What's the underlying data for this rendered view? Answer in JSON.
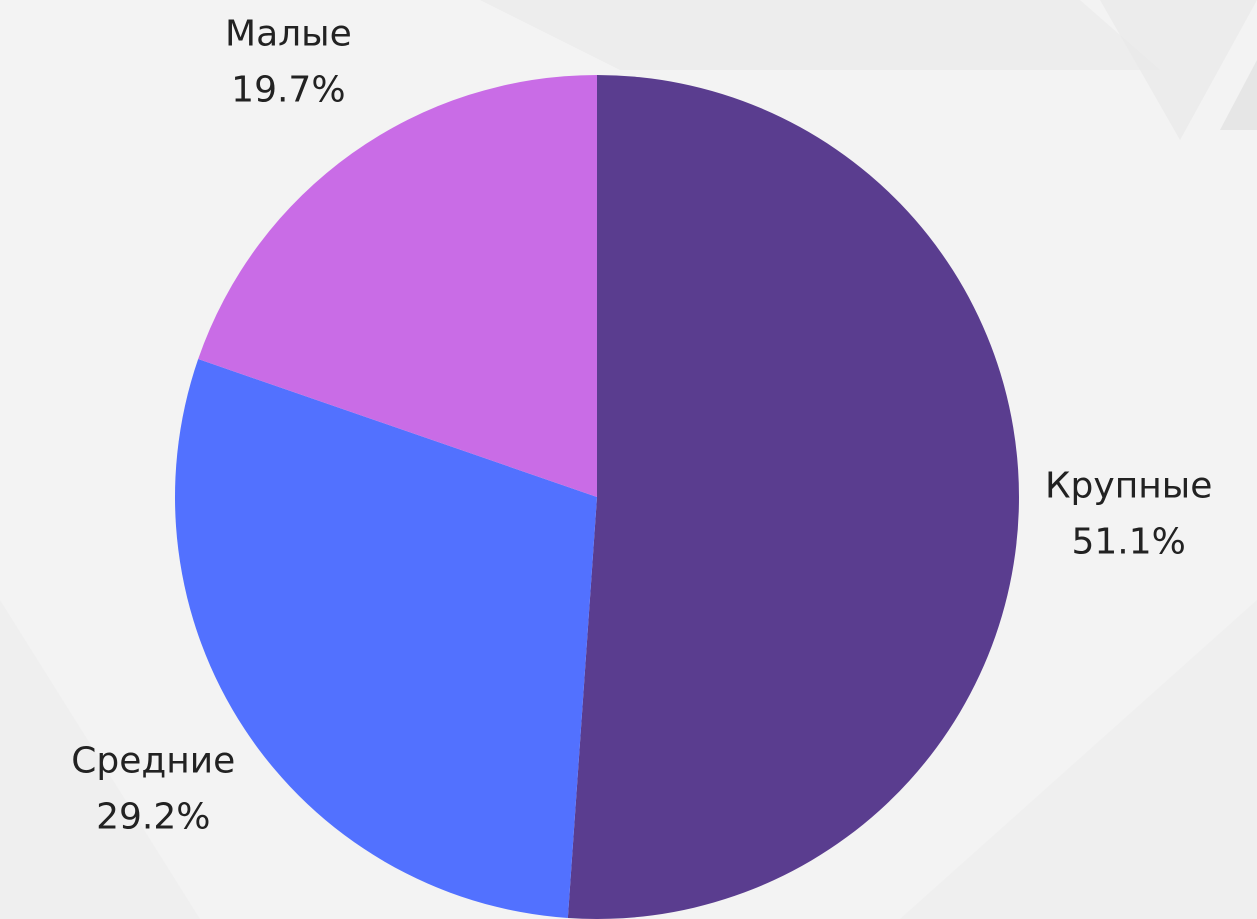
{
  "chart_data": {
    "type": "pie",
    "categories": [
      "Крупные",
      "Средние",
      "Малые"
    ],
    "values": [
      51.1,
      29.2,
      19.7
    ],
    "value_labels": [
      "51.1%",
      "29.2%",
      "19.7%"
    ],
    "colors": [
      "#5a3d8f",
      "#5271ff",
      "#c96ce6"
    ]
  }
}
